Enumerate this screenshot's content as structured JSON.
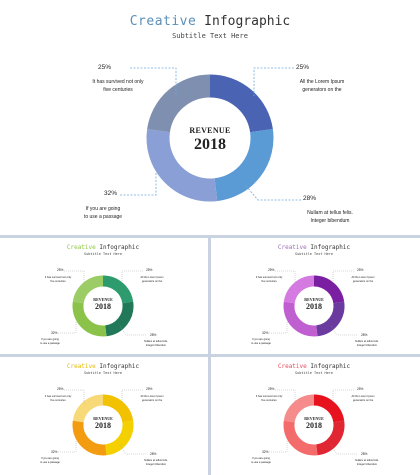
{
  "main": {
    "title_accent": "Creative",
    "title_rest": " Infographic",
    "subtitle": "Subtitle Text Here",
    "center_small": "REVENUE",
    "center_big": "2018",
    "callouts": [
      {
        "pct": "25%",
        "line1": "It has survived not only",
        "line2": "five centuries"
      },
      {
        "pct": "25%",
        "line1": "All the Lorem Ipsum",
        "line2": "generators on the"
      },
      {
        "pct": "28%",
        "line1": "Nullam at tellus felis.",
        "line2": "Integer bibendum"
      },
      {
        "pct": "32%",
        "line1": "If you are going",
        "line2": "to use a passage"
      }
    ]
  },
  "thumbs": [
    {
      "title_accent": "Creative",
      "title_rest": " Infographic",
      "subtitle": "Subtitle Text Here",
      "center_small": "REVENUE",
      "center_big": "2018",
      "accent": "#8cc63f",
      "colors": [
        "#2e9b6e",
        "#21795a",
        "#8bc34a",
        "#9ccc65"
      ]
    },
    {
      "title_accent": "Creative",
      "title_rest": " Infographic",
      "subtitle": "Subtitle Text Here",
      "center_small": "REVENUE",
      "center_big": "2018",
      "accent": "#9c6fb3",
      "colors": [
        "#7b1fa2",
        "#6a3a9e",
        "#c060d0",
        "#d57ae0"
      ]
    },
    {
      "title_accent": "Creative",
      "title_rest": " Infographic",
      "subtitle": "Subtitle Text Here",
      "center_small": "REVENUE",
      "center_big": "2018",
      "accent": "#e6b800",
      "colors": [
        "#f2c200",
        "#f5d000",
        "#f39c12",
        "#f7d978"
      ]
    },
    {
      "title_accent": "Creative",
      "title_rest": " Infographic",
      "subtitle": "Subtitle Text Here",
      "center_small": "REVENUE",
      "center_big": "2018",
      "accent": "#e84c5c",
      "colors": [
        "#e8111e",
        "#e02633",
        "#f36b6b",
        "#f58b8b"
      ]
    }
  ],
  "thumb_callouts": [
    {
      "pct": "25%",
      "line1": "It has survived not only",
      "line2": "five centuries"
    },
    {
      "pct": "25%",
      "line1": "All the Lorem Ipsum",
      "line2": "generators on the"
    },
    {
      "pct": "28%",
      "line1": "Nullam at tellus felis.",
      "line2": "Integer bibendum"
    },
    {
      "pct": "32%",
      "line1": "If you are going",
      "line2": "to use a passage"
    }
  ],
  "colors": {
    "main_accent": "#5b8fb9",
    "main_segments": [
      "#4a63b3",
      "#5a9bd5",
      "#8a9fd6",
      "#7f8fb0"
    ],
    "divider": "#c9d2e0",
    "leader": "#6fa8dc"
  },
  "chart_data": {
    "type": "pie",
    "variant": "donut",
    "categories": [
      "It has survived not only five centuries",
      "All the Lorem Ipsum generators on the",
      "Nullam at tellus felis. Integer bibendum",
      "If you are going to use a passage"
    ],
    "values": [
      25,
      25,
      28,
      32
    ],
    "center_label": "REVENUE 2018"
  }
}
